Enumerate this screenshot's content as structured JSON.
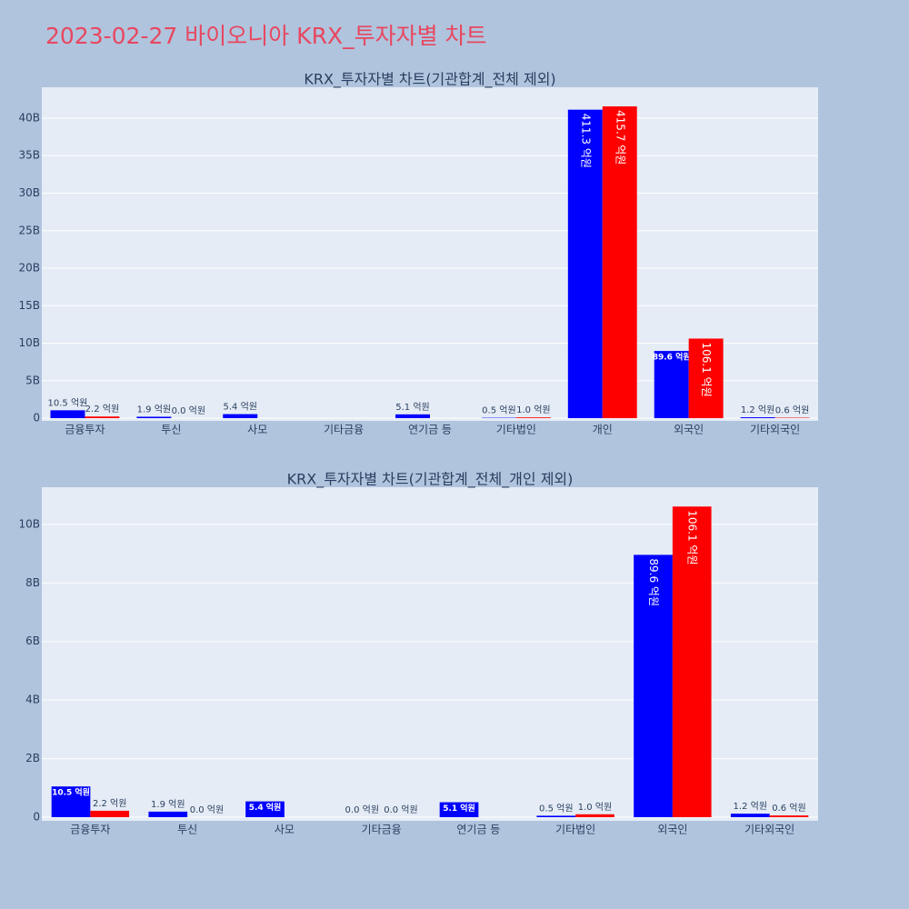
{
  "title": "2023-02-27 바이오니아 KRX_투자자별 차트",
  "chart_data": [
    {
      "type": "bar",
      "title": "KRX_투자자별 차트(기관합계_전체 제외)",
      "categories": [
        "금융투자",
        "투신",
        "사모",
        "기타금융",
        "연기금 등",
        "기타법인",
        "개인",
        "외국인",
        "기타외국인"
      ],
      "series": [
        {
          "color": "#0000ff",
          "values": [
            1050000000,
            190000000,
            540000000,
            null,
            510000000,
            50000000,
            41130000000,
            8960000000,
            120000000
          ],
          "value_labels": [
            "10.5 억원",
            "1.9 억원",
            "5.4 억원",
            null,
            "5.1 억원",
            "0.5 억원",
            "411.3 억원",
            "89.6 억원",
            "1.2 억원"
          ]
        },
        {
          "color": "#ff0000",
          "values": [
            220000000,
            0,
            null,
            null,
            null,
            100000000,
            41570000000,
            10610000000,
            60000000
          ],
          "value_labels": [
            "2.2 억원",
            "0.0 억원",
            null,
            null,
            null,
            "1.0 억원",
            "415.7 억원",
            "106.1 억원",
            "0.6 억원"
          ]
        }
      ],
      "ylim": [
        -360000000,
        44120000000
      ],
      "yticks": [
        {
          "value": 0,
          "label": "0"
        },
        {
          "value": 5000000000,
          "label": "5B"
        },
        {
          "value": 10000000000,
          "label": "10B"
        },
        {
          "value": 15000000000,
          "label": "15B"
        },
        {
          "value": 20000000000,
          "label": "20B"
        },
        {
          "value": 25000000000,
          "label": "25B"
        },
        {
          "value": 30000000000,
          "label": "30B"
        },
        {
          "value": 35000000000,
          "label": "35B"
        },
        {
          "value": 40000000000,
          "label": "40B"
        }
      ],
      "grid": true
    },
    {
      "type": "bar",
      "title": "KRX_투자자별 차트(기관합계_전체_개인 제외)",
      "categories": [
        "금융투자",
        "투신",
        "사모",
        "기타금융",
        "연기금 등",
        "기타법인",
        "외국인",
        "기타외국인"
      ],
      "series": [
        {
          "color": "#0000ff",
          "values": [
            1050000000,
            190000000,
            540000000,
            0,
            510000000,
            50000000,
            8960000000,
            120000000
          ],
          "value_labels": [
            "10.5 억원",
            "1.9 억원",
            "5.4 억원",
            "0.0 억원",
            "5.1 억원",
            "0.5 억원",
            "89.6 억원",
            "1.2 억원"
          ]
        },
        {
          "color": "#ff0000",
          "values": [
            220000000,
            0,
            null,
            0,
            null,
            100000000,
            10610000000,
            60000000
          ],
          "value_labels": [
            "2.2 억원",
            "0.0 억원",
            null,
            "0.0 억원",
            null,
            "1.0 억원",
            "106.1 억원",
            "0.6 억원"
          ]
        }
      ],
      "ylim": [
        -124000000,
        11270000000
      ],
      "yticks": [
        {
          "value": 0,
          "label": "0"
        },
        {
          "value": 2000000000,
          "label": "2B"
        },
        {
          "value": 4000000000,
          "label": "4B"
        },
        {
          "value": 6000000000,
          "label": "6B"
        },
        {
          "value": 8000000000,
          "label": "8B"
        },
        {
          "value": 10000000000,
          "label": "10B"
        }
      ],
      "grid": true
    }
  ]
}
